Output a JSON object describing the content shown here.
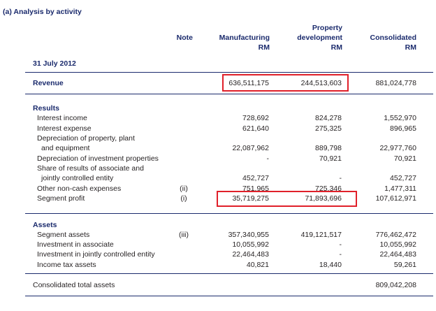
{
  "section_title": "(a)  Analysis by activity",
  "headers": {
    "note": "Note",
    "manufacturing": [
      "Manufacturing",
      "RM"
    ],
    "property": [
      "Property",
      "development",
      "RM"
    ],
    "consolidated": [
      "Consolidated",
      "RM"
    ]
  },
  "date_label": "31 July 2012",
  "revenue": {
    "label": "Revenue",
    "manufacturing": "636,511,175",
    "property": "244,513,603",
    "consolidated": "881,024,778"
  },
  "results": {
    "heading": "Results",
    "rows": [
      {
        "label": "Interest income",
        "note": "",
        "manufacturing": "728,692",
        "property": "824,278",
        "consolidated": "1,552,970"
      },
      {
        "label": "Interest expense",
        "note": "",
        "manufacturing": "621,640",
        "property": "275,325",
        "consolidated": "896,965"
      },
      {
        "label": "Depreciation of property, plant",
        "note": "",
        "manufacturing": "",
        "property": "",
        "consolidated": ""
      },
      {
        "label": "and equipment",
        "note": "",
        "manufacturing": "22,087,962",
        "property": "889,798",
        "consolidated": "22,977,760"
      },
      {
        "label": "Depreciation of investment properties",
        "note": "",
        "manufacturing": "-",
        "property": "70,921",
        "consolidated": "70,921"
      },
      {
        "label": "Share of results of associate and",
        "note": "",
        "manufacturing": "",
        "property": "",
        "consolidated": ""
      },
      {
        "label": "jointly controlled entity",
        "note": "",
        "manufacturing": "452,727",
        "property": "-",
        "consolidated": "452,727"
      },
      {
        "label": "Other non-cash expenses",
        "note": "(ii)",
        "manufacturing": "751,965",
        "property": "725,346",
        "consolidated": "1,477,311"
      },
      {
        "label": "Segment profit",
        "note": "(i)",
        "manufacturing": "35,719,275",
        "property": "71,893,696",
        "consolidated": "107,612,971"
      }
    ]
  },
  "assets": {
    "heading": "Assets",
    "rows": [
      {
        "label": "Segment assets",
        "note": "(iii)",
        "manufacturing": "357,340,955",
        "property": "419,121,517",
        "consolidated": "776,462,472"
      },
      {
        "label": "Investment in associate",
        "note": "",
        "manufacturing": "10,055,992",
        "property": "-",
        "consolidated": "10,055,992"
      },
      {
        "label": "Investment in jointly controlled entity",
        "note": "",
        "manufacturing": "22,464,483",
        "property": "-",
        "consolidated": "22,464,483"
      },
      {
        "label": "Income tax assets",
        "note": "",
        "manufacturing": "40,821",
        "property": "18,440",
        "consolidated": "59,261"
      }
    ]
  },
  "total": {
    "label": "Consolidated total assets",
    "consolidated": "809,042,208"
  },
  "colors": {
    "navy": "#1a2a6c",
    "highlight": "#e0202a"
  }
}
